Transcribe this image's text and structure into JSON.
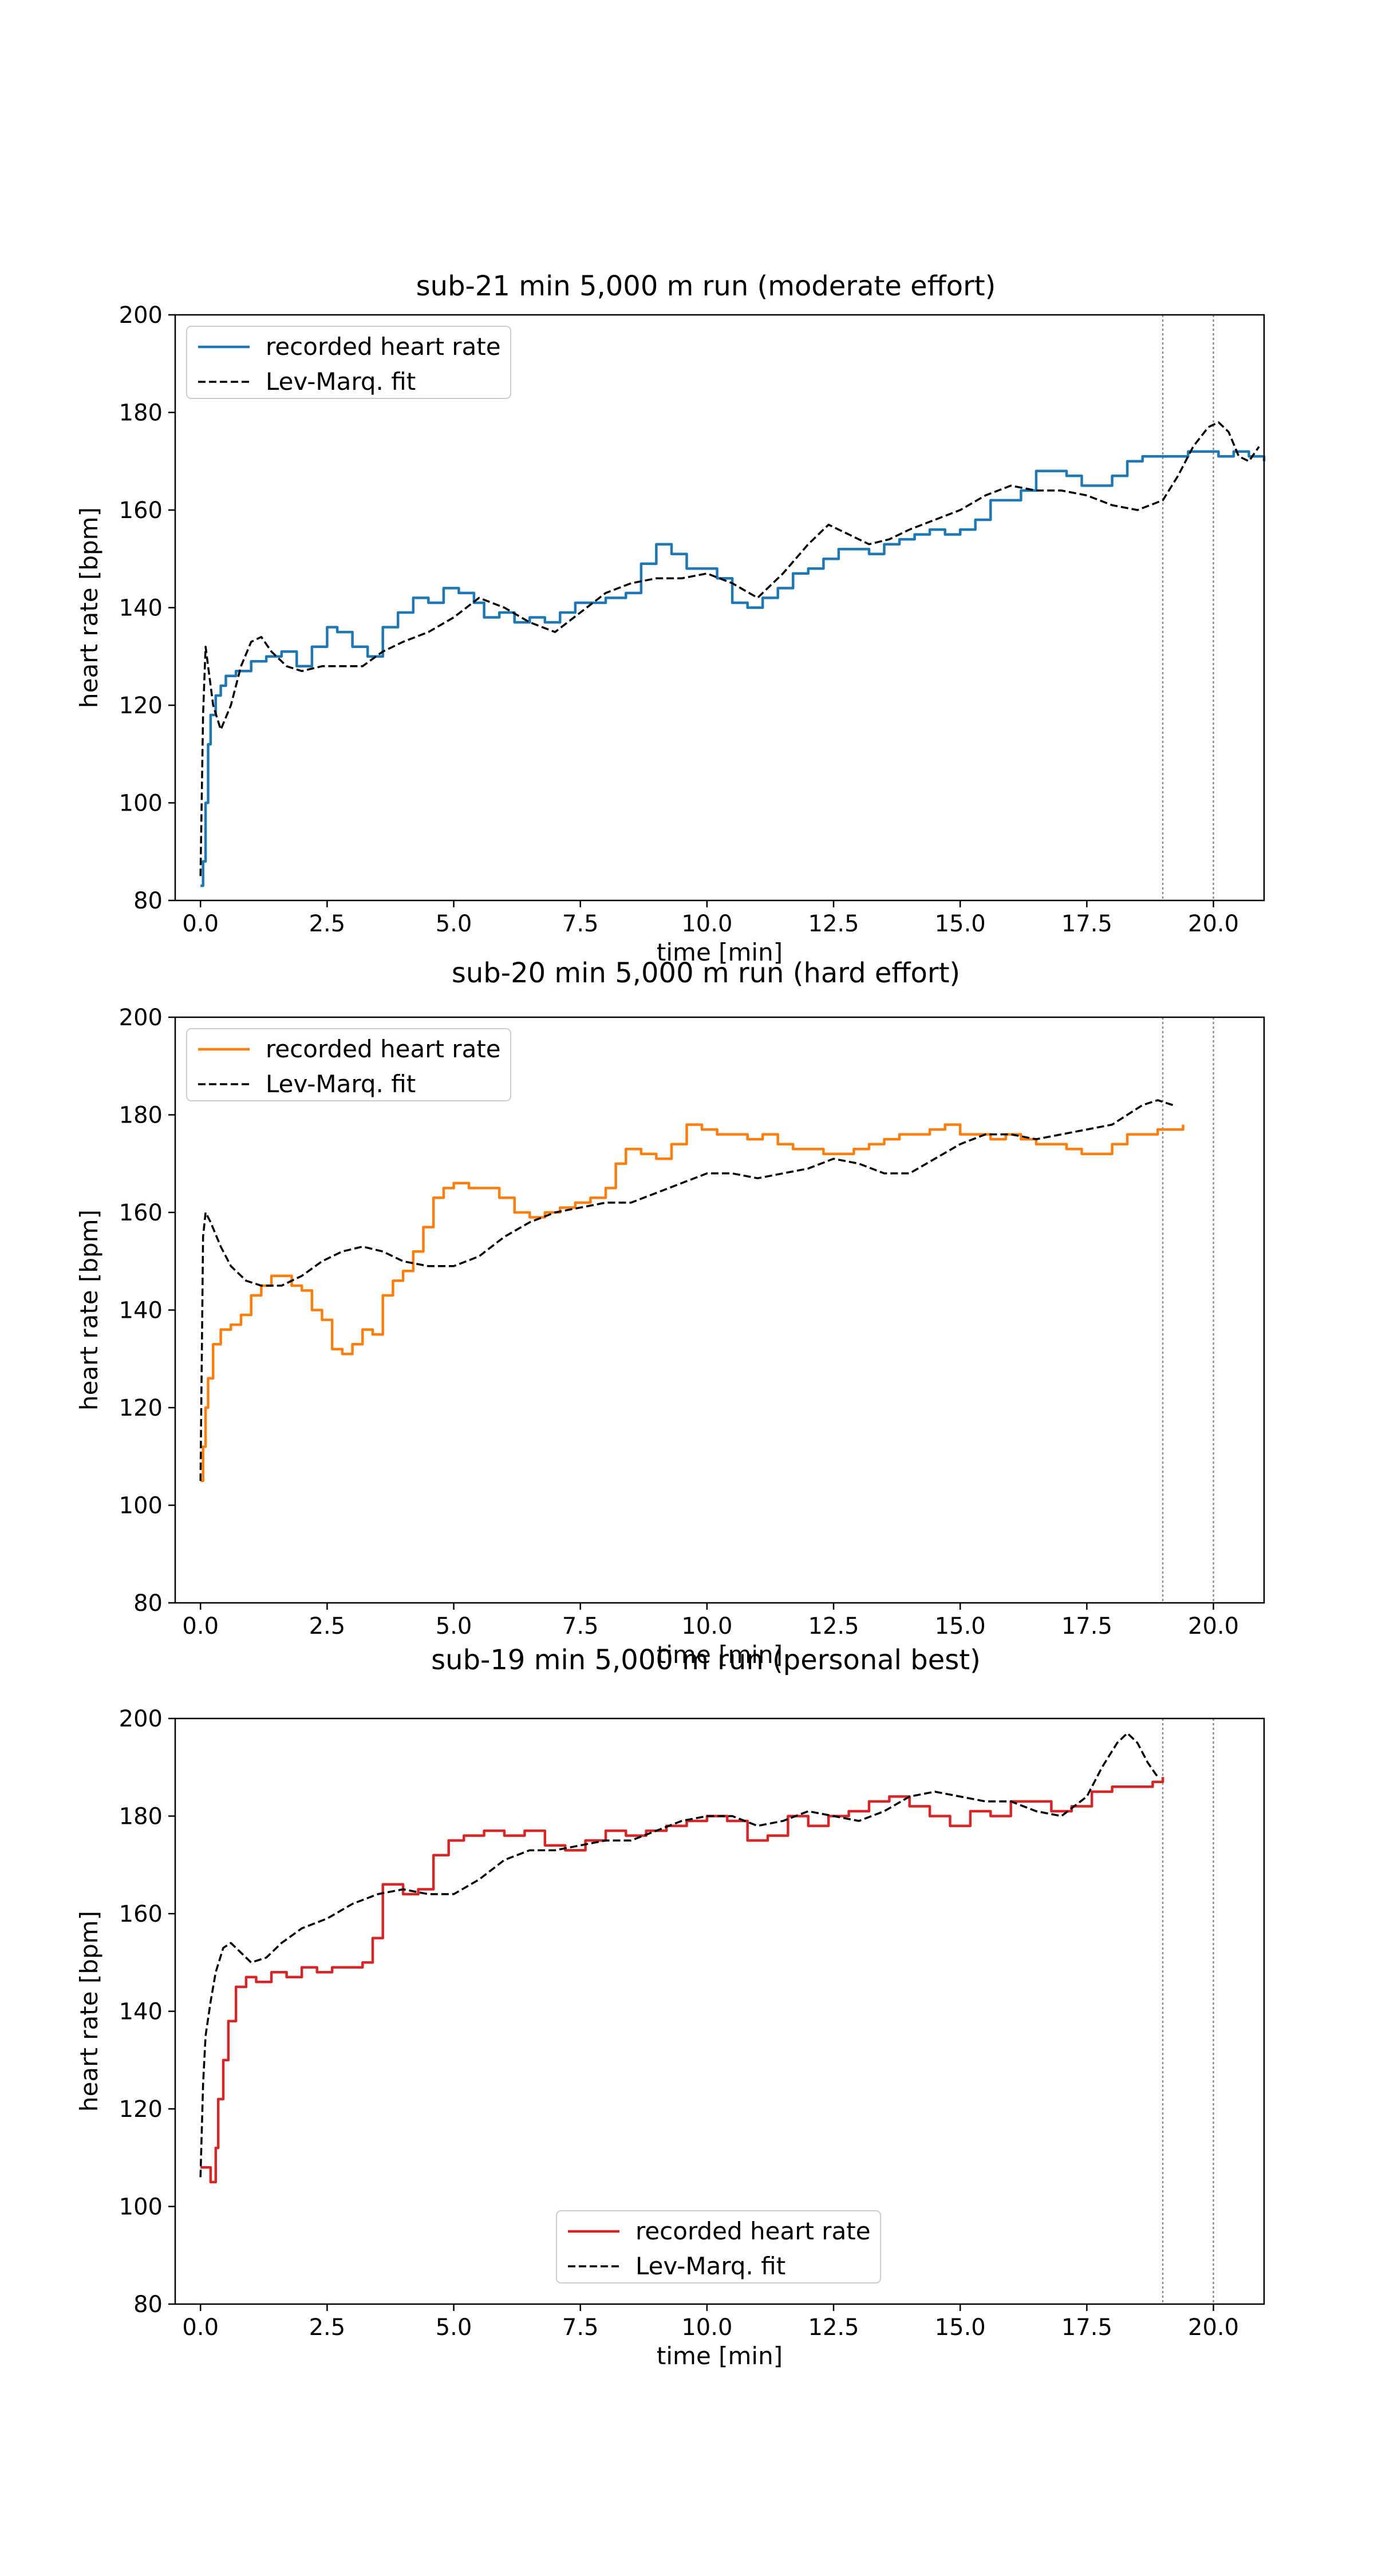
{
  "chart_data": [
    {
      "type": "line",
      "title": "sub-21 min 5,000 m run (moderate effort)",
      "xlabel": "time [min]",
      "ylabel": "heart rate [bpm]",
      "xlim": [
        -0.5,
        21
      ],
      "ylim": [
        80,
        200
      ],
      "xticks": [
        "0.0",
        "2.5",
        "5.0",
        "7.5",
        "10.0",
        "12.5",
        "15.0",
        "17.5",
        "20.0"
      ],
      "yticks": [
        "80",
        "100",
        "120",
        "140",
        "160",
        "180",
        "200"
      ],
      "grid": false,
      "legend_position": "upper-left",
      "vlines": [
        19,
        20
      ],
      "series": [
        {
          "name": "recorded heart rate",
          "color": "#1f77b4",
          "style": "solid",
          "step": true,
          "x": [
            0,
            0.05,
            0.1,
            0.15,
            0.2,
            0.3,
            0.4,
            0.5,
            0.7,
            1.0,
            1.3,
            1.6,
            1.9,
            2.2,
            2.5,
            2.7,
            3.0,
            3.3,
            3.6,
            3.9,
            4.2,
            4.5,
            4.8,
            5.1,
            5.4,
            5.6,
            5.9,
            6.2,
            6.5,
            6.8,
            7.1,
            7.4,
            7.7,
            8.0,
            8.4,
            8.7,
            9.0,
            9.3,
            9.6,
            9.9,
            10.2,
            10.5,
            10.8,
            11.1,
            11.4,
            11.7,
            12.0,
            12.3,
            12.6,
            12.9,
            13.2,
            13.5,
            13.8,
            14.1,
            14.4,
            14.7,
            15.0,
            15.3,
            15.6,
            15.9,
            16.2,
            16.5,
            16.8,
            17.1,
            17.4,
            17.7,
            18.0,
            18.3,
            18.6,
            18.9,
            19.2,
            19.5,
            19.8,
            20.1,
            20.4,
            20.7,
            21.0
          ],
          "y": [
            83,
            88,
            100,
            112,
            118,
            122,
            124,
            126,
            127,
            129,
            130,
            131,
            128,
            132,
            136,
            135,
            132,
            130,
            136,
            139,
            142,
            141,
            144,
            143,
            141,
            138,
            139,
            137,
            138,
            137,
            139,
            141,
            141,
            142,
            143,
            149,
            153,
            151,
            148,
            148,
            146,
            141,
            140,
            142,
            144,
            147,
            148,
            150,
            152,
            152,
            151,
            153,
            154,
            155,
            156,
            155,
            156,
            158,
            162,
            162,
            164,
            168,
            168,
            167,
            165,
            165,
            167,
            170,
            171,
            171,
            171,
            172,
            172,
            171,
            172,
            171,
            170
          ]
        },
        {
          "name": "Lev-Marq. fit",
          "color": "#000000",
          "style": "dashed",
          "step": false,
          "x": [
            0,
            0.05,
            0.1,
            0.15,
            0.25,
            0.4,
            0.6,
            0.8,
            1.0,
            1.2,
            1.4,
            1.7,
            2.0,
            2.4,
            2.8,
            3.2,
            3.6,
            4.0,
            4.5,
            5.0,
            5.5,
            6.0,
            6.5,
            7.0,
            7.5,
            8.0,
            8.5,
            9.0,
            9.5,
            10.0,
            10.5,
            11.0,
            11.5,
            12.0,
            12.4,
            12.8,
            13.2,
            13.6,
            14.0,
            14.5,
            15.0,
            15.5,
            16.0,
            16.5,
            17.0,
            17.5,
            18.0,
            18.5,
            19.0,
            19.3,
            19.6,
            19.9,
            20.1,
            20.3,
            20.5,
            20.7,
            20.9
          ],
          "y": [
            85,
            118,
            132,
            128,
            120,
            115,
            120,
            128,
            133,
            134,
            131,
            128,
            127,
            128,
            128,
            128,
            131,
            133,
            135,
            138,
            142,
            140,
            137,
            135,
            139,
            143,
            145,
            146,
            146,
            147,
            145,
            142,
            147,
            153,
            157,
            155,
            153,
            154,
            156,
            158,
            160,
            163,
            165,
            164,
            164,
            163,
            161,
            160,
            162,
            167,
            173,
            177,
            178,
            176,
            171,
            170,
            173
          ]
        }
      ]
    },
    {
      "type": "line",
      "title": "sub-20 min 5,000 m run (hard effort)",
      "xlabel": "time [min]",
      "ylabel": "heart rate [bpm]",
      "xlim": [
        -0.5,
        21
      ],
      "ylim": [
        80,
        200
      ],
      "xticks": [
        "0.0",
        "2.5",
        "5.0",
        "7.5",
        "10.0",
        "12.5",
        "15.0",
        "17.5",
        "20.0"
      ],
      "yticks": [
        "80",
        "100",
        "120",
        "140",
        "160",
        "180",
        "200"
      ],
      "grid": false,
      "legend_position": "upper-left",
      "vlines": [
        19,
        20
      ],
      "series": [
        {
          "name": "recorded heart rate",
          "color": "#ff7f0e",
          "style": "solid",
          "step": true,
          "x": [
            0,
            0.05,
            0.1,
            0.15,
            0.25,
            0.4,
            0.6,
            0.8,
            1.0,
            1.2,
            1.4,
            1.6,
            1.8,
            2.0,
            2.2,
            2.4,
            2.6,
            2.8,
            3.0,
            3.2,
            3.4,
            3.6,
            3.8,
            4.0,
            4.2,
            4.4,
            4.6,
            4.8,
            5.0,
            5.3,
            5.6,
            5.9,
            6.2,
            6.5,
            6.8,
            7.1,
            7.4,
            7.7,
            8.0,
            8.2,
            8.4,
            8.7,
            9.0,
            9.3,
            9.6,
            9.9,
            10.2,
            10.5,
            10.8,
            11.1,
            11.4,
            11.7,
            12.0,
            12.3,
            12.6,
            12.9,
            13.2,
            13.5,
            13.8,
            14.1,
            14.4,
            14.7,
            15.0,
            15.3,
            15.6,
            15.9,
            16.2,
            16.5,
            16.8,
            17.1,
            17.4,
            17.7,
            18.0,
            18.3,
            18.6,
            18.9,
            19.2,
            19.4
          ],
          "y": [
            105,
            112,
            120,
            126,
            133,
            136,
            137,
            139,
            143,
            145,
            147,
            147,
            145,
            144,
            140,
            138,
            132,
            131,
            133,
            136,
            135,
            143,
            146,
            148,
            152,
            157,
            163,
            165,
            166,
            165,
            165,
            163,
            160,
            159,
            160,
            161,
            162,
            163,
            165,
            170,
            173,
            172,
            171,
            174,
            178,
            177,
            176,
            176,
            175,
            176,
            174,
            173,
            173,
            172,
            172,
            173,
            174,
            175,
            176,
            176,
            177,
            178,
            176,
            176,
            175,
            176,
            175,
            174,
            174,
            173,
            172,
            172,
            174,
            176,
            176,
            177,
            177,
            178
          ]
        },
        {
          "name": "Lev-Marq. fit",
          "color": "#000000",
          "style": "dashed",
          "step": false,
          "x": [
            0,
            0.05,
            0.1,
            0.2,
            0.4,
            0.6,
            0.9,
            1.2,
            1.6,
            2.0,
            2.4,
            2.8,
            3.2,
            3.6,
            4.0,
            4.5,
            5.0,
            5.5,
            6.0,
            6.5,
            7.0,
            7.5,
            8.0,
            8.5,
            9.0,
            9.5,
            10.0,
            10.5,
            11.0,
            11.5,
            12.0,
            12.5,
            13.0,
            13.5,
            14.0,
            14.5,
            15.0,
            15.5,
            16.0,
            16.5,
            17.0,
            17.5,
            18.0,
            18.3,
            18.6,
            18.9,
            19.2
          ],
          "y": [
            105,
            155,
            160,
            158,
            153,
            149,
            146,
            145,
            145,
            147,
            150,
            152,
            153,
            152,
            150,
            149,
            149,
            151,
            155,
            158,
            160,
            161,
            162,
            162,
            164,
            166,
            168,
            168,
            167,
            168,
            169,
            171,
            170,
            168,
            168,
            171,
            174,
            176,
            176,
            175,
            176,
            177,
            178,
            180,
            182,
            183,
            182
          ]
        }
      ]
    },
    {
      "type": "line",
      "title": "sub-19 min 5,000 m run (personal best)",
      "xlabel": "time [min]",
      "ylabel": "heart rate [bpm]",
      "xlim": [
        -0.5,
        21
      ],
      "ylim": [
        80,
        200
      ],
      "xticks": [
        "0.0",
        "2.5",
        "5.0",
        "7.5",
        "10.0",
        "12.5",
        "15.0",
        "17.5",
        "20.0"
      ],
      "yticks": [
        "80",
        "100",
        "120",
        "140",
        "160",
        "180",
        "200"
      ],
      "grid": false,
      "legend_position": "lower-center",
      "vlines": [
        19,
        20
      ],
      "series": [
        {
          "name": "recorded heart rate",
          "color": "#d62728",
          "style": "solid",
          "step": true,
          "x": [
            0,
            0.1,
            0.2,
            0.3,
            0.35,
            0.45,
            0.55,
            0.7,
            0.9,
            1.1,
            1.4,
            1.7,
            2.0,
            2.3,
            2.6,
            2.9,
            3.2,
            3.4,
            3.6,
            3.8,
            4.0,
            4.3,
            4.6,
            4.9,
            5.2,
            5.6,
            6.0,
            6.4,
            6.8,
            7.2,
            7.6,
            8.0,
            8.4,
            8.8,
            9.2,
            9.6,
            10.0,
            10.4,
            10.8,
            11.2,
            11.6,
            12.0,
            12.4,
            12.8,
            13.2,
            13.6,
            14.0,
            14.4,
            14.8,
            15.2,
            15.6,
            16.0,
            16.4,
            16.8,
            17.2,
            17.6,
            18.0,
            18.4,
            18.8,
            19.0
          ],
          "y": [
            108,
            108,
            105,
            112,
            122,
            130,
            138,
            145,
            147,
            146,
            148,
            147,
            149,
            148,
            149,
            149,
            150,
            155,
            166,
            166,
            164,
            165,
            172,
            175,
            176,
            177,
            176,
            177,
            174,
            173,
            175,
            177,
            176,
            177,
            178,
            179,
            180,
            179,
            175,
            176,
            180,
            178,
            180,
            181,
            183,
            184,
            182,
            180,
            178,
            181,
            180,
            183,
            183,
            181,
            182,
            185,
            186,
            186,
            187,
            188
          ]
        },
        {
          "name": "Lev-Marq. fit",
          "color": "#000000",
          "style": "dashed",
          "step": false,
          "x": [
            0,
            0.05,
            0.1,
            0.2,
            0.3,
            0.45,
            0.6,
            0.8,
            1.0,
            1.3,
            1.6,
            2.0,
            2.5,
            3.0,
            3.5,
            4.0,
            4.5,
            5.0,
            5.5,
            6.0,
            6.5,
            7.0,
            7.5,
            8.0,
            8.5,
            9.0,
            9.5,
            10.0,
            10.5,
            11.0,
            11.5,
            12.0,
            12.5,
            13.0,
            13.5,
            14.0,
            14.5,
            15.0,
            15.5,
            16.0,
            16.5,
            17.0,
            17.5,
            17.8,
            18.1,
            18.3,
            18.5,
            18.7,
            18.9
          ],
          "y": [
            106,
            125,
            135,
            142,
            148,
            153,
            154,
            152,
            150,
            151,
            154,
            157,
            159,
            162,
            164,
            165,
            164,
            164,
            167,
            171,
            173,
            173,
            174,
            175,
            175,
            177,
            179,
            180,
            180,
            178,
            179,
            181,
            180,
            179,
            181,
            184,
            185,
            184,
            183,
            183,
            181,
            180,
            184,
            190,
            195,
            197,
            195,
            191,
            188
          ]
        }
      ]
    }
  ]
}
